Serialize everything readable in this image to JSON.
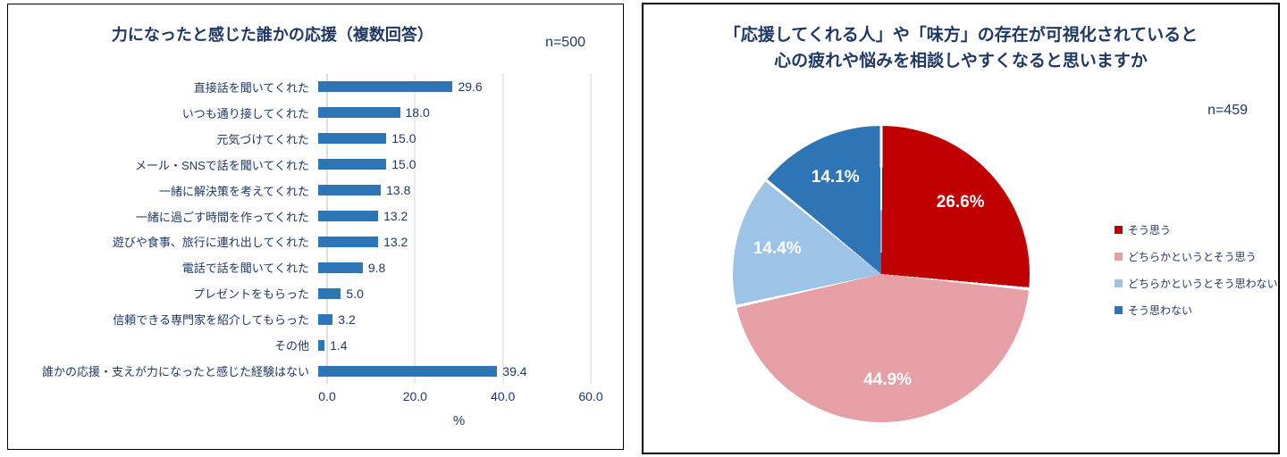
{
  "chart_data": [
    {
      "type": "bar",
      "orientation": "horizontal",
      "title": "力になったと感じた誰かの応援（複数回答）",
      "n_label": "n=500",
      "categories": [
        "直接話を聞いてくれた",
        "いつも通り接してくれた",
        "元気づけてくれた",
        "メール・SNSで話を聞いてくれた",
        "一緒に解決策を考えてくれた",
        "一緒に過ごす時間を作ってくれた",
        "遊びや食事、旅行に連れ出してくれた",
        "電話で話を聞いてくれた",
        "プレゼントをもらった",
        "信頼できる専門家を紹介してもらった",
        "その他",
        "誰かの応援・支えが力になったと感じた経験はない"
      ],
      "values": [
        29.6,
        18.0,
        15.0,
        15.0,
        13.8,
        13.2,
        13.2,
        9.8,
        5.0,
        3.2,
        1.4,
        39.4
      ],
      "value_labels": [
        "29.6",
        "18.0",
        "15.0",
        "15.0",
        "13.8",
        "13.2",
        "13.2",
        "9.8",
        "5.0",
        "3.2",
        "1.4",
        "39.4"
      ],
      "xlim": [
        0,
        60
      ],
      "xticks": [
        {
          "value": 0,
          "label": "0.0"
        },
        {
          "value": 20,
          "label": "20.0"
        },
        {
          "value": 40,
          "label": "40.0"
        },
        {
          "value": 60,
          "label": "60.0"
        }
      ],
      "xlabel": "%",
      "grid": true,
      "bar_color": "#2E75B6"
    },
    {
      "type": "pie",
      "title_lines": [
        "「応援してくれる人」や「味方」の存在が可視化されていると",
        "心の疲れや悩みを相談しやすくなると思いますか"
      ],
      "n_label": "n=459",
      "start_angle_deg": 0,
      "direction": "clockwise",
      "legend_position": "right",
      "slices": [
        {
          "label": "そう思う",
          "value": 26.6,
          "text": "26.6%",
          "color": "#C00000"
        },
        {
          "label": "どちらかというとそう思う",
          "value": 44.9,
          "text": "44.9%",
          "color": "#E79FA6"
        },
        {
          "label": "どちらかというとそう思わない",
          "value": 14.4,
          "text": "14.4%",
          "color": "#9DC3E6"
        },
        {
          "label": "そう思わない",
          "value": 14.1,
          "text": "14.1%",
          "color": "#2E75B6"
        }
      ]
    }
  ],
  "colors": {
    "title_text": "#1F3864",
    "gridline": "#D9D9D9",
    "pie_label_text": "#ffffff"
  }
}
